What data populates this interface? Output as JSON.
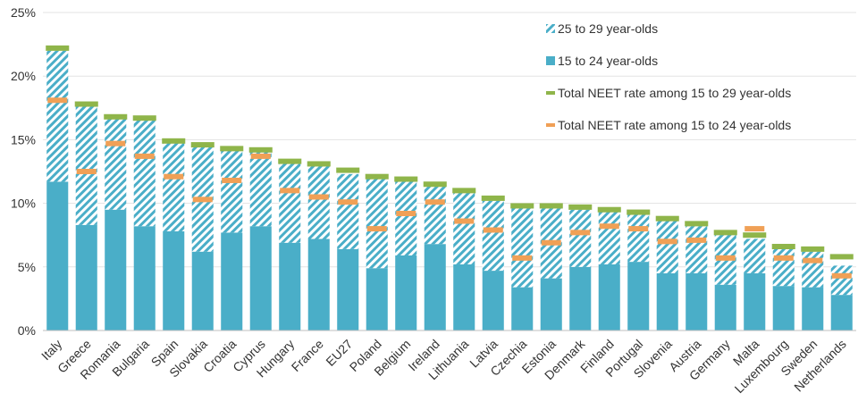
{
  "chart_data": {
    "type": "bar",
    "title": "",
    "xlabel": "",
    "ylabel": "",
    "ylim": [
      0,
      25
    ],
    "yticks": [
      "0%",
      "5%",
      "10%",
      "15%",
      "20%",
      "25%"
    ],
    "grid": true,
    "legend_position": "top-right",
    "categories": [
      "Italy",
      "Greece",
      "Romania",
      "Bulgaria",
      "Spain",
      "Slovakia",
      "Croatia",
      "Cyprus",
      "Hungary",
      "France",
      "EU27",
      "Poland",
      "Belgium",
      "Ireland",
      "Lithuania",
      "Latvia",
      "Czechia",
      "Estonia",
      "Denmark",
      "Finland",
      "Portugal",
      "Slovenia",
      "Austria",
      "Germany",
      "Malta",
      "Luxembourg",
      "Sweden",
      "Netherlands"
    ],
    "series": [
      {
        "name": "15 to 24 year-olds",
        "kind": "bar",
        "color": "#4aaec8",
        "values": [
          11.7,
          8.3,
          9.5,
          8.2,
          7.8,
          6.2,
          7.7,
          8.2,
          6.9,
          7.2,
          6.4,
          4.9,
          5.9,
          6.8,
          5.2,
          4.7,
          3.4,
          4.1,
          5.0,
          5.2,
          5.4,
          4.5,
          4.5,
          3.6,
          4.5,
          3.5,
          3.4,
          2.8
        ]
      },
      {
        "name": "25 to 29 year-olds",
        "kind": "bar-hatched",
        "color": "#4aaec8",
        "values": [
          10.3,
          9.4,
          7.2,
          8.4,
          7.0,
          8.3,
          6.5,
          6.0,
          6.3,
          5.8,
          5.9,
          7.1,
          6.0,
          4.6,
          5.7,
          5.5,
          6.3,
          5.5,
          4.5,
          4.2,
          3.7,
          4.2,
          3.7,
          4.0,
          2.7,
          2.9,
          2.8,
          2.3
        ]
      },
      {
        "name": "Total NEET rate among 15 to 29 year-olds",
        "kind": "marker",
        "color": "#8fb54a",
        "values": [
          22.2,
          17.8,
          16.8,
          16.7,
          14.9,
          14.6,
          14.3,
          14.2,
          13.3,
          13.1,
          12.6,
          12.1,
          11.9,
          11.5,
          11.0,
          10.4,
          9.8,
          9.8,
          9.7,
          9.5,
          9.3,
          8.8,
          8.4,
          7.7,
          7.5,
          6.6,
          6.4,
          5.8
        ]
      },
      {
        "name": "Total NEET rate among 15 to 24 year-olds",
        "kind": "marker",
        "color": "#f0a056",
        "values": [
          18.1,
          12.5,
          14.7,
          13.7,
          12.1,
          10.3,
          11.8,
          13.7,
          11.0,
          10.5,
          10.1,
          8.0,
          9.2,
          10.1,
          8.6,
          7.9,
          5.7,
          6.9,
          7.7,
          8.2,
          8.0,
          7.0,
          7.1,
          5.7,
          8.0,
          5.7,
          5.5,
          4.3
        ]
      }
    ],
    "legend": [
      {
        "label": "25 to 29 year-olds",
        "kind": "bar-hatched",
        "color": "#4aaec8"
      },
      {
        "label": "15 to 24 year-olds",
        "kind": "bar",
        "color": "#4aaec8"
      },
      {
        "label": "Total NEET rate among 15 to 29 year-olds",
        "kind": "marker",
        "color": "#8fb54a"
      },
      {
        "label": "Total NEET rate among 15 to 24 year-olds",
        "kind": "marker",
        "color": "#f0a056"
      }
    ]
  }
}
